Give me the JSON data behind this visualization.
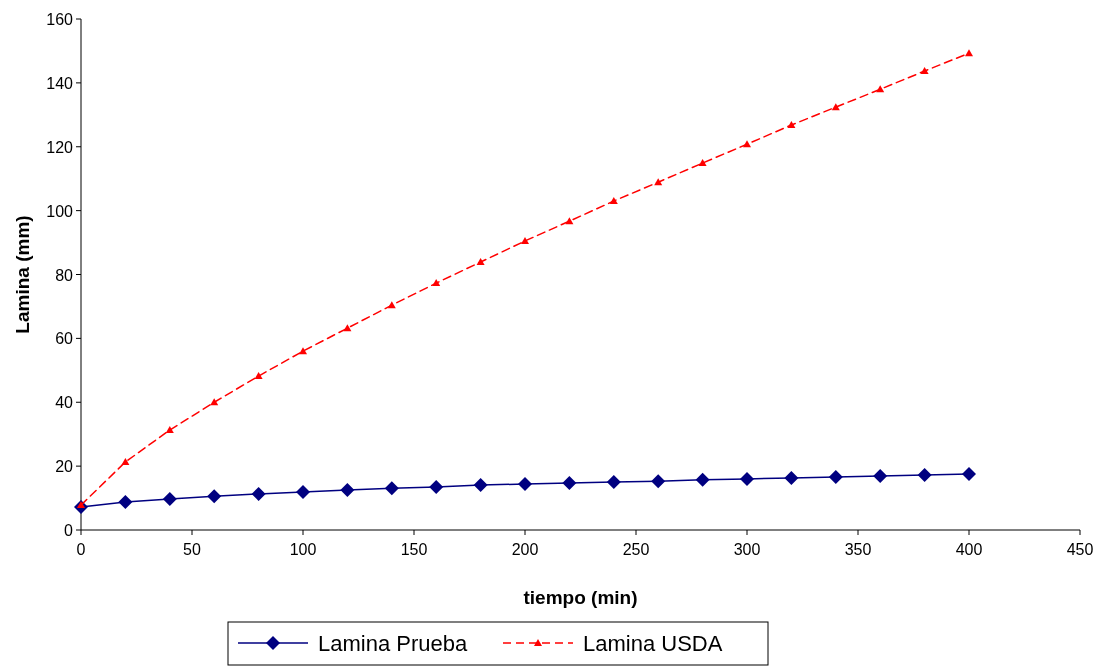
{
  "chart_data": {
    "type": "line",
    "xlabel": "tiempo (min)",
    "ylabel": "Lamina (mm)",
    "x": [
      0,
      20,
      40,
      60,
      80,
      100,
      120,
      140,
      160,
      180,
      200,
      220,
      240,
      260,
      280,
      300,
      320,
      340,
      360,
      380,
      400
    ],
    "series": [
      {
        "name": "Lamina Prueba",
        "color": "#000080",
        "marker": "diamond",
        "line_style": "solid",
        "values": [
          7.2,
          8.8,
          9.7,
          10.6,
          11.3,
          11.9,
          12.5,
          13.1,
          13.5,
          14.1,
          14.4,
          14.7,
          15,
          15.3,
          15.7,
          16,
          16.3,
          16.6,
          16.9,
          17.2,
          17.5
        ]
      },
      {
        "name": "Lamina USDA",
        "color": "#ff0000",
        "marker": "triangle",
        "line_style": "dashed",
        "values": [
          7.8,
          21.3,
          31.3,
          40,
          48.2,
          56,
          63.2,
          70.4,
          77.3,
          83.9,
          90.5,
          96.7,
          103,
          108.9,
          114.9,
          120.8,
          126.8,
          132.4,
          138,
          143.7,
          149.3
        ]
      }
    ],
    "xlim": [
      0,
      450
    ],
    "xticks": [
      0,
      50,
      100,
      150,
      200,
      250,
      300,
      350,
      400,
      450
    ],
    "ylim": [
      0,
      160
    ],
    "yticks": [
      0,
      20,
      40,
      60,
      80,
      100,
      120,
      140,
      160
    ],
    "grid": false,
    "legend": "bottom"
  }
}
